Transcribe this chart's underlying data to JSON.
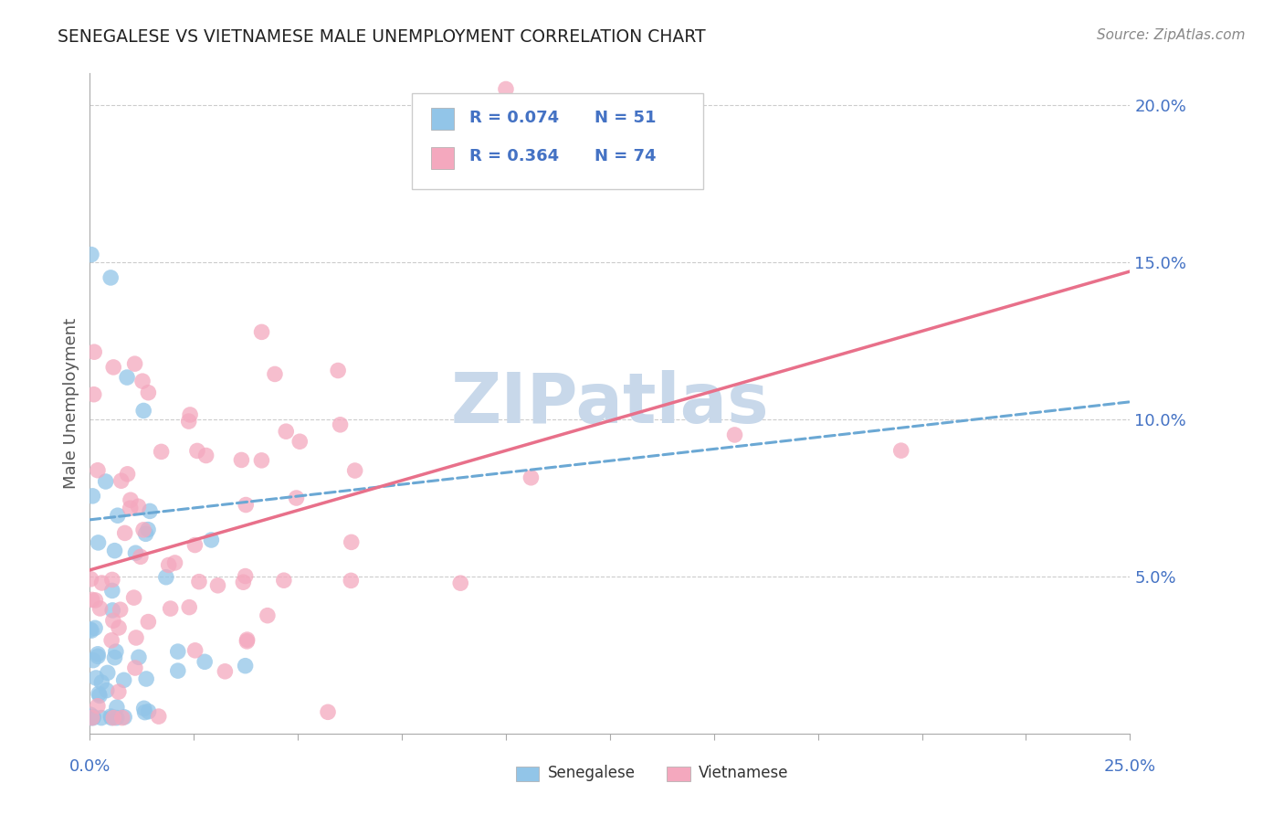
{
  "title": "SENEGALESE VS VIETNAMESE MALE UNEMPLOYMENT CORRELATION CHART",
  "source": "Source: ZipAtlas.com",
  "ylabel": "Male Unemployment",
  "senegalese_color": "#92C5E8",
  "vietnamese_color": "#F4A8BE",
  "senegalese_line_color": "#6BA8D4",
  "vietnamese_line_color": "#E8708A",
  "label_color": "#4472C4",
  "axis_label_color": "#555555",
  "watermark_color": "#C8D8EA",
  "senegalese_label": "Senegalese",
  "vietnamese_label": "Vietnamese",
  "legend_r1": "R = 0.074",
  "legend_n1": "N = 51",
  "legend_r2": "R = 0.364",
  "legend_n2": "N = 74"
}
